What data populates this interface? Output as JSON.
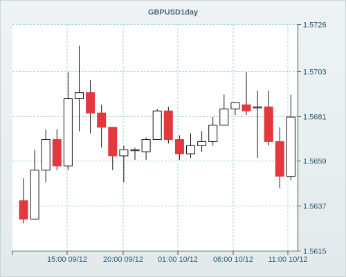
{
  "chart_data": {
    "type": "candlestick",
    "title": "GBPUSD1day",
    "y_ticks": [
      "1.5615",
      "1.5637",
      "1.5659",
      "1.5681",
      "1.5703",
      "1.5726"
    ],
    "x_ticks": [
      "15:00 09/12",
      "20:00 09/12",
      "01:00 10/12",
      "06:00 10/12",
      "11:00 10/12"
    ],
    "ylim": [
      1.5615,
      1.5726
    ],
    "grid": true,
    "colors": {
      "up": "#ffffff",
      "down": "#e2393f",
      "outline": "#111111",
      "grid": "#9fd3d5"
    },
    "candles": [
      {
        "open": 1.56395,
        "high": 1.56505,
        "low": 1.56285,
        "close": 1.56305
      },
      {
        "open": 1.56305,
        "high": 1.56645,
        "low": 1.56305,
        "close": 1.56545
      },
      {
        "open": 1.56545,
        "high": 1.56745,
        "low": 1.56485,
        "close": 1.56695
      },
      {
        "open": 1.56695,
        "high": 1.56745,
        "low": 1.56545,
        "close": 1.56565
      },
      {
        "open": 1.56565,
        "high": 1.57025,
        "low": 1.56545,
        "close": 1.56895
      },
      {
        "open": 1.56895,
        "high": 1.57155,
        "low": 1.56735,
        "close": 1.56925
      },
      {
        "open": 1.56925,
        "high": 1.56985,
        "low": 1.56725,
        "close": 1.56825
      },
      {
        "open": 1.56825,
        "high": 1.56865,
        "low": 1.56655,
        "close": 1.56755
      },
      {
        "open": 1.56755,
        "high": 1.56755,
        "low": 1.56545,
        "close": 1.56615
      },
      {
        "open": 1.56615,
        "high": 1.56665,
        "low": 1.56485,
        "close": 1.56645
      },
      {
        "open": 1.56645,
        "high": 1.56655,
        "low": 1.56595,
        "close": 1.56645
      },
      {
        "open": 1.56635,
        "high": 1.56705,
        "low": 1.56595,
        "close": 1.56695
      },
      {
        "open": 1.56695,
        "high": 1.56845,
        "low": 1.56695,
        "close": 1.56835
      },
      {
        "open": 1.56835,
        "high": 1.56855,
        "low": 1.56675,
        "close": 1.56695
      },
      {
        "open": 1.56695,
        "high": 1.56715,
        "low": 1.56595,
        "close": 1.56625
      },
      {
        "open": 1.56625,
        "high": 1.56725,
        "low": 1.56605,
        "close": 1.56665
      },
      {
        "open": 1.56665,
        "high": 1.56735,
        "low": 1.56635,
        "close": 1.56685
      },
      {
        "open": 1.56685,
        "high": 1.56805,
        "low": 1.56665,
        "close": 1.56765
      },
      {
        "open": 1.56765,
        "high": 1.56915,
        "low": 1.56765,
        "close": 1.56845
      },
      {
        "open": 1.56845,
        "high": 1.56875,
        "low": 1.56815,
        "close": 1.56875
      },
      {
        "open": 1.56865,
        "high": 1.57025,
        "low": 1.56815,
        "close": 1.56835
      },
      {
        "open": 1.56855,
        "high": 1.56935,
        "low": 1.56605,
        "close": 1.56855
      },
      {
        "open": 1.56855,
        "high": 1.56935,
        "low": 1.56665,
        "close": 1.56685
      },
      {
        "open": 1.56685,
        "high": 1.56755,
        "low": 1.56455,
        "close": 1.56515
      },
      {
        "open": 1.56515,
        "high": 1.56915,
        "low": 1.56495,
        "close": 1.56805
      }
    ]
  }
}
